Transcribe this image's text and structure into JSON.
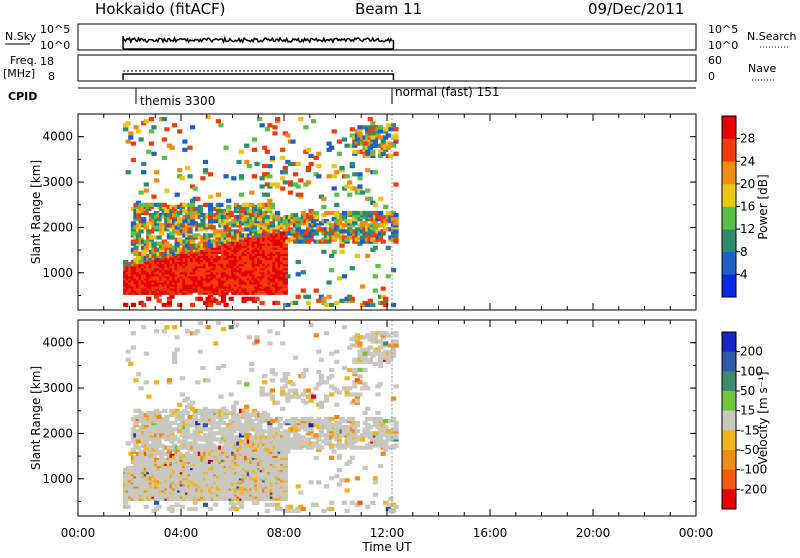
{
  "header": {
    "site": "Hokkaido (fitACF)",
    "beam": "Beam 11",
    "date": "09/Dec/2011"
  },
  "top_panels": {
    "nsky_label": "N.Sky",
    "nsky_ticks": [
      "10^5",
      "10^0"
    ],
    "freq_label": "Freq.",
    "freq_unit": "[MHz]",
    "freq_ticks": [
      "18",
      "8"
    ],
    "nsearch_label": "N.Search",
    "nsearch_ticks": [
      "10^5",
      "10^0"
    ],
    "nave_label": "Nave",
    "nave_ticks": [
      "60",
      "0"
    ],
    "cpid_label": "CPID",
    "cpid_modes": [
      "themis 3300",
      "normal (fast) 151"
    ]
  },
  "chart_data": [
    {
      "type": "heatmap",
      "name": "power",
      "ylabel": "Slant Range [km]",
      "xlabel": "Time UT",
      "x_ticks": [
        "00:00",
        "04:00",
        "08:00",
        "12:00",
        "16:00",
        "20:00",
        "00:00"
      ],
      "y_ticks": [
        1000,
        2000,
        3000,
        4000
      ],
      "ylim": [
        180,
        4500
      ],
      "xlim_hours": [
        0,
        24
      ],
      "data_time_range_hours": [
        1.7,
        12.3
      ],
      "colorbar": {
        "label": "Power [dB]",
        "ticks": [
          "4",
          "8",
          "12",
          "16",
          "20",
          "24",
          "28"
        ],
        "colors": [
          "#0a28e8",
          "#1f5fc8",
          "#2e8c6e",
          "#5cbf4a",
          "#e8c814",
          "#f08c14",
          "#f03c0a",
          "#e60000"
        ]
      }
    },
    {
      "type": "heatmap",
      "name": "velocity",
      "ylabel": "Slant Range [km]",
      "xlabel": "Time UT",
      "x_ticks": [
        "00:00",
        "04:00",
        "08:00",
        "12:00",
        "16:00",
        "20:00",
        "00:00"
      ],
      "y_ticks": [
        1000,
        2000,
        3000,
        4000
      ],
      "ylim": [
        180,
        4500
      ],
      "xlim_hours": [
        0,
        24
      ],
      "colorbar": {
        "label": "Velocity [m s⁻¹]",
        "ticks": [
          "200",
          "100",
          "50",
          "15",
          "-15",
          "-50",
          "-100",
          "-200"
        ],
        "colors": [
          "#1428c8",
          "#2e5aa8",
          "#3c8c6e",
          "#6ec83c",
          "#c8c8c0",
          "#f0b41e",
          "#f08c14",
          "#f05a0a",
          "#e60000"
        ]
      }
    }
  ],
  "xlabel": "Time UT"
}
